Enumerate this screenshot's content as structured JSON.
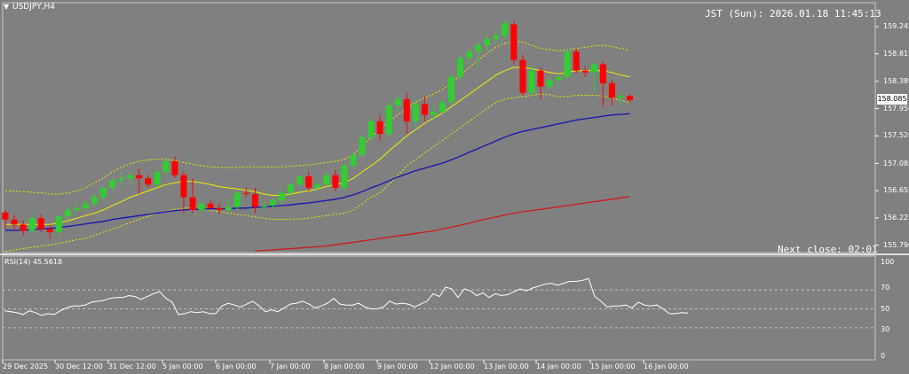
{
  "window": {
    "symbol_title": "USDJPY,H4",
    "menu_icon": "triangle-down-icon",
    "clock": "JST (Sun): 2026.01.18 11:45:13",
    "next_close": "Next close: 02:01"
  },
  "price_axis": {
    "labels": [
      "159.245",
      "158.815",
      "158.380",
      "157.950",
      "157.520",
      "157.085",
      "156.655",
      "156.225",
      "155.796"
    ],
    "current_price": "158.085"
  },
  "rsi": {
    "title": "RSI(14) 45.5618",
    "levels": [
      "100",
      "70",
      "50",
      "30",
      "0"
    ]
  },
  "time_axis": {
    "labels": [
      "29 Dec 2025",
      "30 Dec 12:00",
      "31 Dec 12:00",
      "5 Jan 00:00",
      "6 Jan 00:00",
      "7 Jan 00:00",
      "8 Jan 00:00",
      "9 Jan 00:00",
      "12 Jan 00:00",
      "13 Jan 00:00",
      "14 Jan 00:00",
      "15 Jan 00:00",
      "16 Jan 00:00"
    ]
  },
  "colors": {
    "background": "#808080",
    "bull": "#32cd32",
    "bear": "#ff0000",
    "ma_blue": "#1414b4",
    "ma_red": "#cc1a1a",
    "bb_mid": "#f0f000",
    "bb_band": "#e8e800",
    "rsi_line": "#ffffff"
  },
  "chart_data": {
    "type": "candlestick",
    "ylim": [
      155.7,
      159.35
    ],
    "candles": [
      {
        "o": 156.31,
        "h": 156.35,
        "l": 156.05,
        "c": 156.2
      },
      {
        "o": 156.2,
        "h": 156.27,
        "l": 156.03,
        "c": 156.12
      },
      {
        "o": 156.12,
        "h": 156.18,
        "l": 155.95,
        "c": 156.02
      },
      {
        "o": 156.02,
        "h": 156.28,
        "l": 155.97,
        "c": 156.22
      },
      {
        "o": 156.22,
        "h": 156.28,
        "l": 156.0,
        "c": 156.05
      },
      {
        "o": 156.05,
        "h": 156.12,
        "l": 155.9,
        "c": 156.0
      },
      {
        "o": 156.0,
        "h": 156.3,
        "l": 155.93,
        "c": 156.25
      },
      {
        "o": 156.25,
        "h": 156.4,
        "l": 156.2,
        "c": 156.35
      },
      {
        "o": 156.35,
        "h": 156.45,
        "l": 156.3,
        "c": 156.38
      },
      {
        "o": 156.38,
        "h": 156.5,
        "l": 156.33,
        "c": 156.45
      },
      {
        "o": 156.45,
        "h": 156.6,
        "l": 156.4,
        "c": 156.55
      },
      {
        "o": 156.55,
        "h": 156.72,
        "l": 156.5,
        "c": 156.7
      },
      {
        "o": 156.7,
        "h": 156.85,
        "l": 156.65,
        "c": 156.82
      },
      {
        "o": 156.82,
        "h": 156.95,
        "l": 156.75,
        "c": 156.85
      },
      {
        "o": 156.85,
        "h": 156.95,
        "l": 156.78,
        "c": 156.9
      },
      {
        "o": 156.9,
        "h": 157.0,
        "l": 156.6,
        "c": 156.85
      },
      {
        "o": 156.85,
        "h": 156.9,
        "l": 156.7,
        "c": 156.75
      },
      {
        "o": 156.75,
        "h": 157.0,
        "l": 156.7,
        "c": 156.95
      },
      {
        "o": 156.95,
        "h": 157.15,
        "l": 156.9,
        "c": 157.12
      },
      {
        "o": 157.12,
        "h": 157.2,
        "l": 156.85,
        "c": 156.9
      },
      {
        "o": 156.9,
        "h": 156.95,
        "l": 156.3,
        "c": 156.55
      },
      {
        "o": 156.55,
        "h": 156.85,
        "l": 156.3,
        "c": 156.35
      },
      {
        "o": 156.35,
        "h": 156.48,
        "l": 156.3,
        "c": 156.45
      },
      {
        "o": 156.45,
        "h": 156.5,
        "l": 156.35,
        "c": 156.38
      },
      {
        "o": 156.38,
        "h": 156.45,
        "l": 156.28,
        "c": 156.35
      },
      {
        "o": 156.35,
        "h": 156.55,
        "l": 156.3,
        "c": 156.4
      },
      {
        "o": 156.4,
        "h": 156.65,
        "l": 156.35,
        "c": 156.62
      },
      {
        "o": 156.62,
        "h": 156.7,
        "l": 156.55,
        "c": 156.6
      },
      {
        "o": 156.6,
        "h": 156.7,
        "l": 156.3,
        "c": 156.4
      },
      {
        "o": 156.4,
        "h": 156.5,
        "l": 156.35,
        "c": 156.42
      },
      {
        "o": 156.42,
        "h": 156.55,
        "l": 156.38,
        "c": 156.5
      },
      {
        "o": 156.5,
        "h": 156.7,
        "l": 156.45,
        "c": 156.62
      },
      {
        "o": 156.62,
        "h": 156.8,
        "l": 156.55,
        "c": 156.75
      },
      {
        "o": 156.75,
        "h": 156.92,
        "l": 156.7,
        "c": 156.88
      },
      {
        "o": 156.88,
        "h": 156.95,
        "l": 156.65,
        "c": 156.7
      },
      {
        "o": 156.7,
        "h": 156.82,
        "l": 156.6,
        "c": 156.75
      },
      {
        "o": 156.75,
        "h": 156.95,
        "l": 156.72,
        "c": 156.9
      },
      {
        "o": 156.9,
        "h": 156.98,
        "l": 156.65,
        "c": 156.7
      },
      {
        "o": 156.7,
        "h": 157.1,
        "l": 156.65,
        "c": 157.05
      },
      {
        "o": 157.05,
        "h": 157.25,
        "l": 157.0,
        "c": 157.22
      },
      {
        "o": 157.22,
        "h": 157.55,
        "l": 157.18,
        "c": 157.5
      },
      {
        "o": 157.5,
        "h": 157.8,
        "l": 157.45,
        "c": 157.75
      },
      {
        "o": 157.75,
        "h": 157.85,
        "l": 157.45,
        "c": 157.55
      },
      {
        "o": 157.55,
        "h": 158.05,
        "l": 157.5,
        "c": 158.0
      },
      {
        "o": 158.0,
        "h": 158.15,
        "l": 157.9,
        "c": 158.1
      },
      {
        "o": 158.1,
        "h": 158.2,
        "l": 157.55,
        "c": 157.75
      },
      {
        "o": 157.75,
        "h": 158.08,
        "l": 157.65,
        "c": 158.02
      },
      {
        "o": 158.02,
        "h": 158.15,
        "l": 157.75,
        "c": 157.85
      },
      {
        "o": 157.85,
        "h": 158.0,
        "l": 157.75,
        "c": 157.9
      },
      {
        "o": 157.9,
        "h": 158.1,
        "l": 157.85,
        "c": 158.05
      },
      {
        "o": 158.05,
        "h": 158.5,
        "l": 158.0,
        "c": 158.45
      },
      {
        "o": 158.45,
        "h": 158.8,
        "l": 158.4,
        "c": 158.75
      },
      {
        "o": 158.75,
        "h": 158.9,
        "l": 158.65,
        "c": 158.85
      },
      {
        "o": 158.85,
        "h": 159.0,
        "l": 158.6,
        "c": 158.95
      },
      {
        "o": 158.95,
        "h": 159.12,
        "l": 158.85,
        "c": 159.05
      },
      {
        "o": 159.05,
        "h": 159.2,
        "l": 158.95,
        "c": 159.1
      },
      {
        "o": 159.1,
        "h": 159.35,
        "l": 159.05,
        "c": 159.3
      },
      {
        "o": 159.28,
        "h": 159.33,
        "l": 158.65,
        "c": 158.72
      },
      {
        "o": 158.72,
        "h": 158.8,
        "l": 158.15,
        "c": 158.2
      },
      {
        "o": 158.2,
        "h": 158.65,
        "l": 158.15,
        "c": 158.55
      },
      {
        "o": 158.55,
        "h": 158.6,
        "l": 158.1,
        "c": 158.3
      },
      {
        "o": 158.3,
        "h": 158.45,
        "l": 158.25,
        "c": 158.4
      },
      {
        "o": 158.4,
        "h": 158.5,
        "l": 158.3,
        "c": 158.45
      },
      {
        "o": 158.45,
        "h": 158.9,
        "l": 158.4,
        "c": 158.85
      },
      {
        "o": 158.85,
        "h": 158.9,
        "l": 158.5,
        "c": 158.55
      },
      {
        "o": 158.55,
        "h": 158.62,
        "l": 158.45,
        "c": 158.52
      },
      {
        "o": 158.52,
        "h": 158.7,
        "l": 158.2,
        "c": 158.65
      },
      {
        "o": 158.65,
        "h": 158.7,
        "l": 157.98,
        "c": 158.35
      },
      {
        "o": 158.35,
        "h": 158.4,
        "l": 158.0,
        "c": 158.12
      },
      {
        "o": 158.12,
        "h": 158.2,
        "l": 158.0,
        "c": 158.15
      },
      {
        "o": 158.15,
        "h": 158.18,
        "l": 158.05,
        "c": 158.085
      }
    ],
    "moving_average_blue": [
      156.03,
      156.03,
      156.03,
      156.04,
      156.05,
      156.06,
      156.07,
      156.09,
      156.11,
      156.13,
      156.15,
      156.17,
      156.2,
      156.22,
      156.24,
      156.26,
      156.28,
      156.3,
      156.32,
      156.34,
      156.35,
      156.36,
      156.36,
      156.37,
      156.37,
      156.37,
      156.38,
      156.38,
      156.39,
      156.4,
      156.41,
      156.42,
      156.43,
      156.45,
      156.46,
      156.48,
      156.5,
      156.52,
      156.55,
      156.59,
      156.64,
      156.7,
      156.75,
      156.81,
      156.87,
      156.92,
      156.97,
      157.01,
      157.05,
      157.09,
      157.14,
      157.2,
      157.26,
      157.32,
      157.38,
      157.44,
      157.5,
      157.55,
      157.59,
      157.62,
      157.65,
      157.68,
      157.71,
      157.74,
      157.77,
      157.79,
      157.81,
      157.83,
      157.85,
      157.86,
      157.87
    ],
    "moving_average_red": [
      null,
      null,
      null,
      null,
      null,
      null,
      null,
      null,
      null,
      null,
      null,
      null,
      null,
      null,
      null,
      null,
      null,
      null,
      null,
      null,
      null,
      null,
      null,
      null,
      null,
      null,
      null,
      null,
      155.7,
      155.71,
      155.72,
      155.73,
      155.74,
      155.75,
      155.76,
      155.77,
      155.78,
      155.8,
      155.82,
      155.84,
      155.86,
      155.88,
      155.9,
      155.92,
      155.94,
      155.96,
      155.98,
      156.0,
      156.02,
      156.05,
      156.08,
      156.11,
      156.14,
      156.18,
      156.21,
      156.24,
      156.27,
      156.3,
      156.32,
      156.34,
      156.36,
      156.38,
      156.4,
      156.42,
      156.44,
      156.46,
      156.48,
      156.5,
      156.52,
      156.54,
      156.56
    ],
    "bollinger_mid": [
      156.12,
      156.12,
      156.12,
      156.12,
      156.12,
      156.12,
      156.15,
      156.18,
      156.22,
      156.26,
      156.3,
      156.35,
      156.42,
      156.48,
      156.55,
      156.6,
      156.65,
      156.7,
      156.75,
      156.78,
      156.8,
      156.8,
      156.78,
      156.75,
      156.72,
      156.7,
      156.68,
      156.66,
      156.64,
      156.6,
      156.58,
      156.58,
      156.6,
      156.63,
      156.65,
      156.68,
      156.72,
      156.75,
      156.78,
      156.85,
      156.95,
      157.05,
      157.15,
      157.28,
      157.4,
      157.52,
      157.62,
      157.72,
      157.8,
      157.88,
      157.98,
      158.08,
      158.18,
      158.28,
      158.38,
      158.48,
      158.55,
      158.6,
      158.6,
      158.58,
      158.55,
      158.52,
      158.5,
      158.52,
      158.55,
      158.55,
      158.55,
      158.55,
      158.52,
      158.48,
      158.45
    ],
    "bollinger_upper": [
      156.65,
      156.65,
      156.64,
      156.63,
      156.62,
      156.6,
      156.6,
      156.62,
      156.65,
      156.7,
      156.78,
      156.86,
      156.95,
      157.02,
      157.08,
      157.12,
      157.14,
      157.15,
      157.15,
      157.13,
      157.1,
      157.07,
      157.05,
      157.03,
      157.02,
      157.02,
      157.02,
      157.03,
      157.03,
      157.03,
      157.03,
      157.03,
      157.04,
      157.05,
      157.06,
      157.08,
      157.1,
      157.12,
      157.15,
      157.22,
      157.35,
      157.5,
      157.62,
      157.75,
      157.85,
      157.95,
      158.05,
      158.12,
      158.18,
      158.25,
      158.35,
      158.48,
      158.6,
      158.72,
      158.82,
      158.92,
      158.98,
      159.02,
      159.0,
      158.95,
      158.9,
      158.88,
      158.86,
      158.88,
      158.9,
      158.92,
      158.94,
      158.95,
      158.93,
      158.9,
      158.87
    ],
    "bollinger_lower": [
      155.7,
      155.72,
      155.74,
      155.76,
      155.78,
      155.8,
      155.82,
      155.85,
      155.88,
      155.9,
      155.95,
      156.0,
      156.05,
      156.1,
      156.15,
      156.2,
      156.25,
      156.3,
      156.33,
      156.36,
      156.38,
      156.38,
      156.36,
      156.34,
      156.32,
      156.3,
      156.28,
      156.26,
      156.24,
      156.22,
      156.2,
      156.2,
      156.2,
      156.21,
      156.22,
      156.24,
      156.26,
      156.28,
      156.3,
      156.35,
      156.45,
      156.55,
      156.62,
      156.75,
      156.9,
      157.05,
      157.15,
      157.25,
      157.35,
      157.45,
      157.55,
      157.65,
      157.75,
      157.85,
      157.95,
      158.05,
      158.1,
      158.12,
      158.14,
      158.16,
      158.18,
      158.17,
      158.14,
      158.14,
      158.16,
      158.16,
      158.16,
      158.15,
      158.12,
      158.08,
      158.04
    ],
    "rsi_values": [
      48,
      47,
      46,
      44,
      48,
      46,
      43,
      45,
      44,
      48,
      51,
      53,
      53,
      54,
      57,
      58,
      59,
      61,
      62,
      62,
      64,
      63,
      60,
      63,
      66,
      68,
      61,
      57,
      44,
      45,
      47,
      46,
      47,
      45,
      45,
      53,
      56,
      54,
      52,
      55,
      58,
      53,
      47,
      49,
      47,
      51,
      55,
      56,
      58,
      55,
      51,
      53,
      56,
      61,
      55,
      54,
      54,
      56,
      52,
      50,
      50,
      52,
      58,
      55,
      56,
      55,
      52,
      55,
      58,
      66,
      63,
      73,
      71,
      62,
      71,
      69,
      64,
      67,
      62,
      66,
      64,
      65,
      68,
      71,
      69,
      72,
      74,
      76,
      77,
      75,
      77,
      79,
      79,
      80,
      82,
      63,
      58,
      52,
      53,
      53,
      54,
      51,
      57,
      54,
      53,
      54,
      50,
      45,
      45,
      46,
      45.5618
    ],
    "rsi_levels": [
      70,
      50,
      30
    ],
    "rsi_range": [
      0,
      100
    ]
  }
}
